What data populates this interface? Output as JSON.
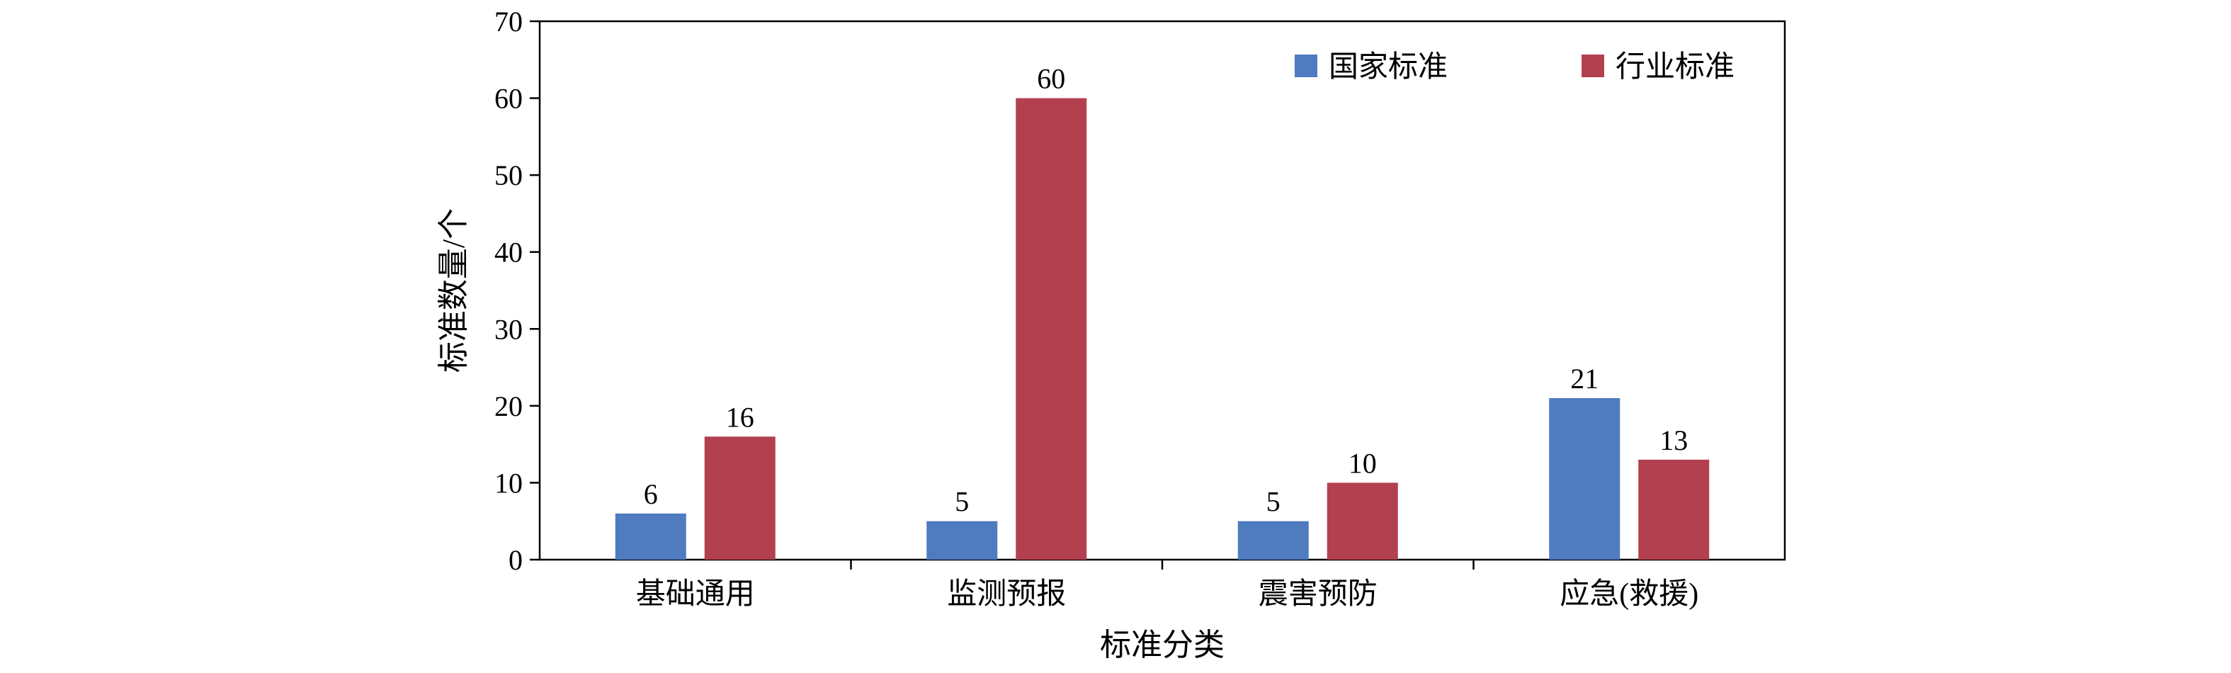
{
  "chart_data": {
    "type": "bar",
    "categories": [
      "基础通用",
      "监测预报",
      "震害预防",
      "应急(救援)"
    ],
    "series": [
      {
        "name": "国家标准",
        "values": [
          6,
          5,
          5,
          21
        ],
        "color": "#4f7bbf"
      },
      {
        "name": "行业标准",
        "values": [
          16,
          60,
          10,
          13
        ],
        "color": "#b2404f"
      }
    ],
    "xlabel": "标准分类",
    "ylabel": "标准数量/个",
    "ylim": [
      0,
      70
    ],
    "yticks": [
      0,
      10,
      20,
      30,
      40,
      50,
      60,
      70
    ],
    "grid": false,
    "legend_position": "top-right",
    "data_labels": true
  }
}
